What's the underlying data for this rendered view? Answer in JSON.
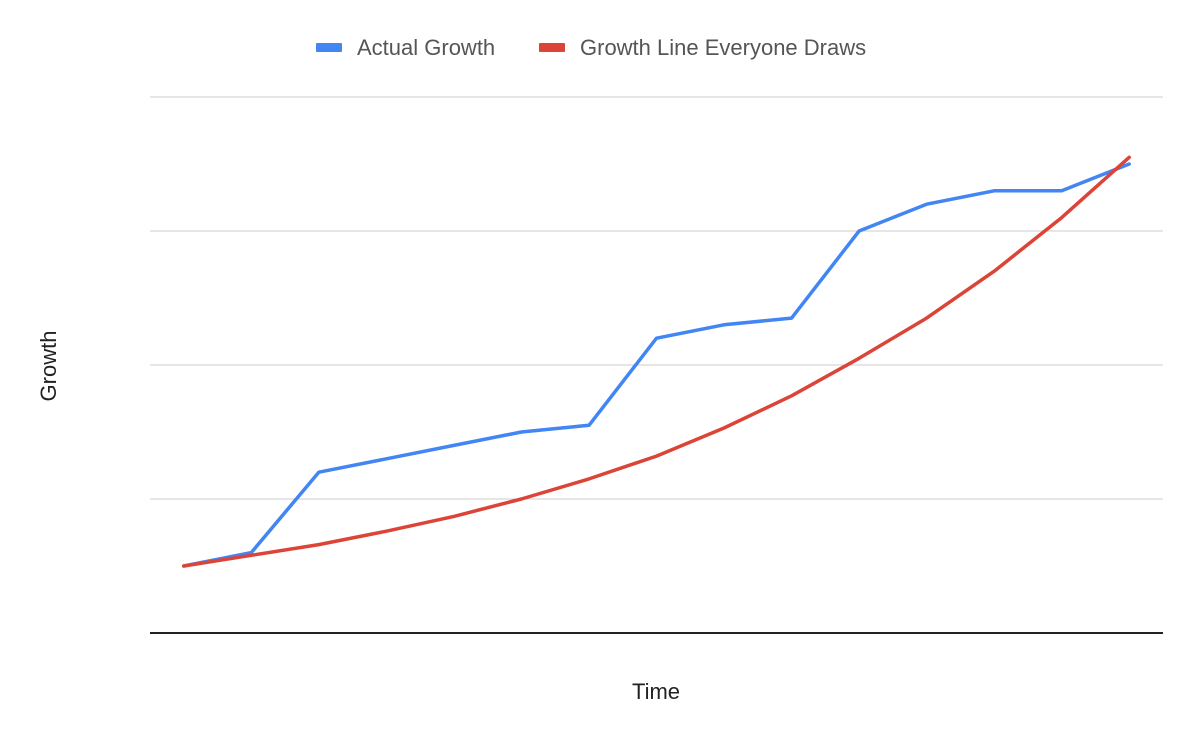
{
  "chart_data": {
    "type": "line",
    "title": "",
    "xlabel": "Time",
    "ylabel": "Growth",
    "x": [
      1,
      2,
      3,
      4,
      5,
      6,
      7,
      8,
      9,
      10,
      11,
      12,
      13,
      14,
      15
    ],
    "xlim": [
      0.5,
      15.5
    ],
    "ylim": [
      0,
      4
    ],
    "grid": true,
    "legend_position": "top",
    "series": [
      {
        "name": "Actual Growth",
        "color": "#4285F4",
        "values": [
          0.5,
          0.6,
          1.2,
          1.3,
          1.4,
          1.5,
          1.55,
          2.2,
          2.3,
          2.35,
          3.0,
          3.2,
          3.3,
          3.3,
          3.5
        ]
      },
      {
        "name": "Growth Line Everyone Draws",
        "color": "#DB4437",
        "values": [
          0.5,
          0.58,
          0.66,
          0.76,
          0.87,
          1.0,
          1.15,
          1.32,
          1.53,
          1.77,
          2.05,
          2.35,
          2.7,
          3.1,
          3.55
        ]
      }
    ]
  }
}
